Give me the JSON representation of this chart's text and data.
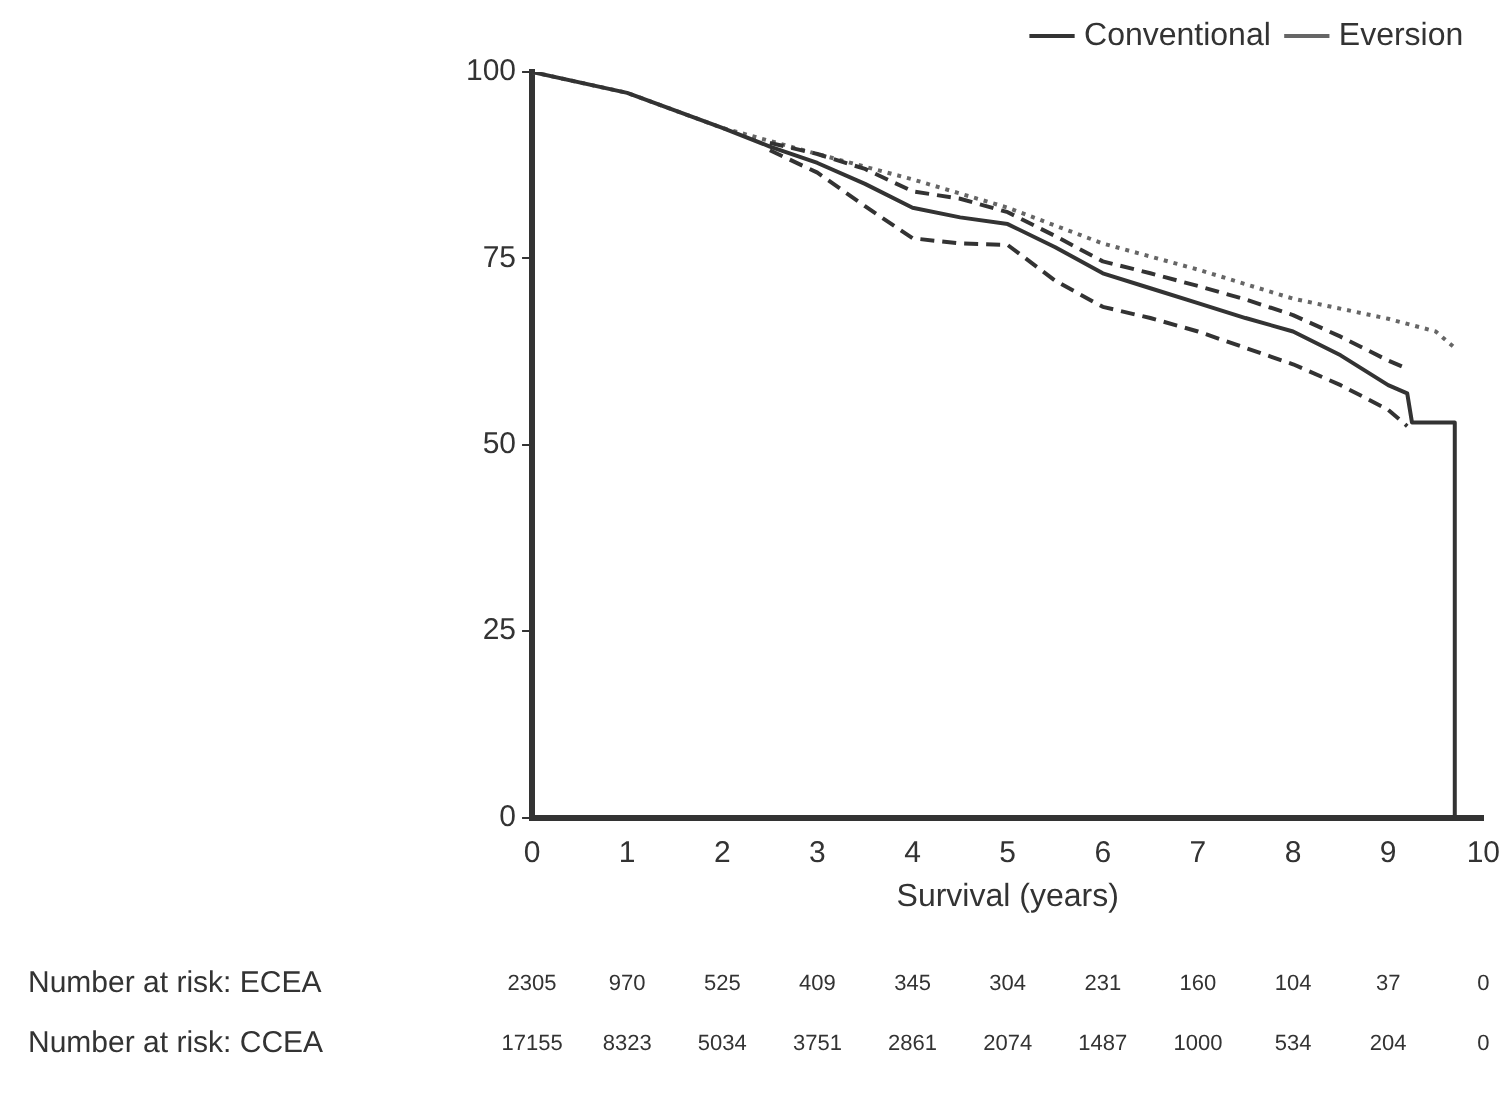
{
  "chart_data": {
    "type": "line",
    "xlabel": "Survival (years)",
    "xlim": [
      0,
      10
    ],
    "xticks": [
      0,
      1,
      2,
      3,
      4,
      5,
      6,
      7,
      8,
      9,
      10
    ],
    "ylim": [
      0,
      100
    ],
    "yticks": [
      0,
      25,
      50,
      75,
      100
    ],
    "grid": false,
    "legend": "top right",
    "marker": "none",
    "series": [
      {
        "name": "Conventional",
        "color": "#333333",
        "line_style": "solid",
        "x": [
          0,
          1,
          2,
          2.5,
          3,
          3.5,
          4,
          4.5,
          5,
          5.5,
          6,
          6.5,
          7,
          7.5,
          8,
          8.5,
          9,
          9.2,
          9.25,
          9.7,
          9.7
        ],
        "values": [
          100,
          97.2,
          92.5,
          90,
          87.8,
          85,
          81.8,
          80.5,
          79.6,
          76.5,
          73,
          71,
          69,
          67,
          65.2,
          62,
          58,
          56.9,
          53,
          53,
          0
        ]
      },
      {
        "color": "#333333",
        "line_style": "dashed",
        "x": [
          2.5,
          3,
          3.5,
          4,
          4.5,
          5,
          5.5,
          6,
          6.5,
          7,
          7.5,
          8,
          8.5,
          9,
          9.2
        ],
        "values": [
          89.5,
          86.5,
          82,
          77.7,
          77,
          76.8,
          72,
          68.5,
          67,
          65.2,
          63,
          60.8,
          58,
          54.7,
          52.5
        ]
      },
      {
        "color": "#333333",
        "line_style": "dashed",
        "x": [
          2.5,
          3,
          3.5,
          4,
          4.5,
          5,
          5.5,
          6,
          6.5,
          7,
          7.5,
          8,
          8.5,
          9,
          9.2
        ],
        "values": [
          90.5,
          89,
          87,
          84,
          83,
          81.2,
          78,
          74.6,
          73,
          71.3,
          69.5,
          67.4,
          64.5,
          61.3,
          60.2
        ]
      },
      {
        "name": "Eversion",
        "color": "#666666",
        "line_style": "dotted",
        "x": [
          0,
          1,
          2,
          3,
          4,
          5,
          6,
          7,
          8,
          9,
          9.5,
          9.7
        ],
        "values": [
          100,
          97.2,
          92.5,
          89,
          85.6,
          81.8,
          77,
          73.5,
          69.6,
          66.9,
          65.2,
          63
        ]
      }
    ],
    "annotations": [
      "Number at risk: ECEA",
      "2305 970 525 409 345 304 231 160 104 37 0",
      "Number at risk: CCEA",
      "17155 8323 5034 3751 2861 2074 1487 1000 534 204 0"
    ]
  }
}
